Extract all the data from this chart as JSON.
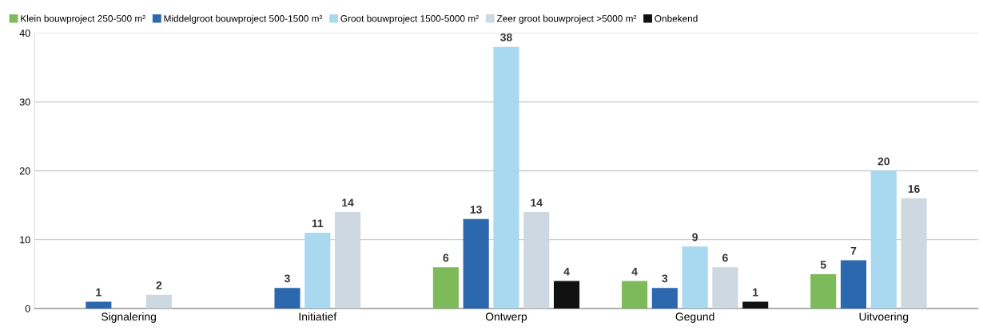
{
  "chart_data": {
    "type": "bar",
    "categories": [
      "Signalering",
      "Initiatief",
      "Ontwerp",
      "Gegund",
      "Uitvoering"
    ],
    "series": [
      {
        "name": "Klein bouwproject 250-500 m²",
        "color": "#7dbb5a",
        "values": [
          null,
          null,
          6,
          4,
          5
        ]
      },
      {
        "name": "Middelgroot bouwproject 500-1500 m²",
        "color": "#2b68ae",
        "values": [
          1,
          3,
          13,
          3,
          7
        ]
      },
      {
        "name": "Groot bouwproject 1500-5000 m²",
        "color": "#a8d9f0",
        "values": [
          null,
          11,
          38,
          9,
          20
        ]
      },
      {
        "name": "Zeer groot bouwproject >5000 m²",
        "color": "#cdd8e0",
        "values": [
          2,
          14,
          14,
          6,
          16
        ]
      },
      {
        "name": "Onbekend",
        "color": "#111111",
        "values": [
          null,
          null,
          4,
          1,
          null
        ]
      }
    ],
    "ylim": [
      0,
      40
    ],
    "yticks": [
      0,
      10,
      20,
      30,
      40
    ],
    "grid": "y",
    "legend": "top left",
    "data_labels": true
  }
}
